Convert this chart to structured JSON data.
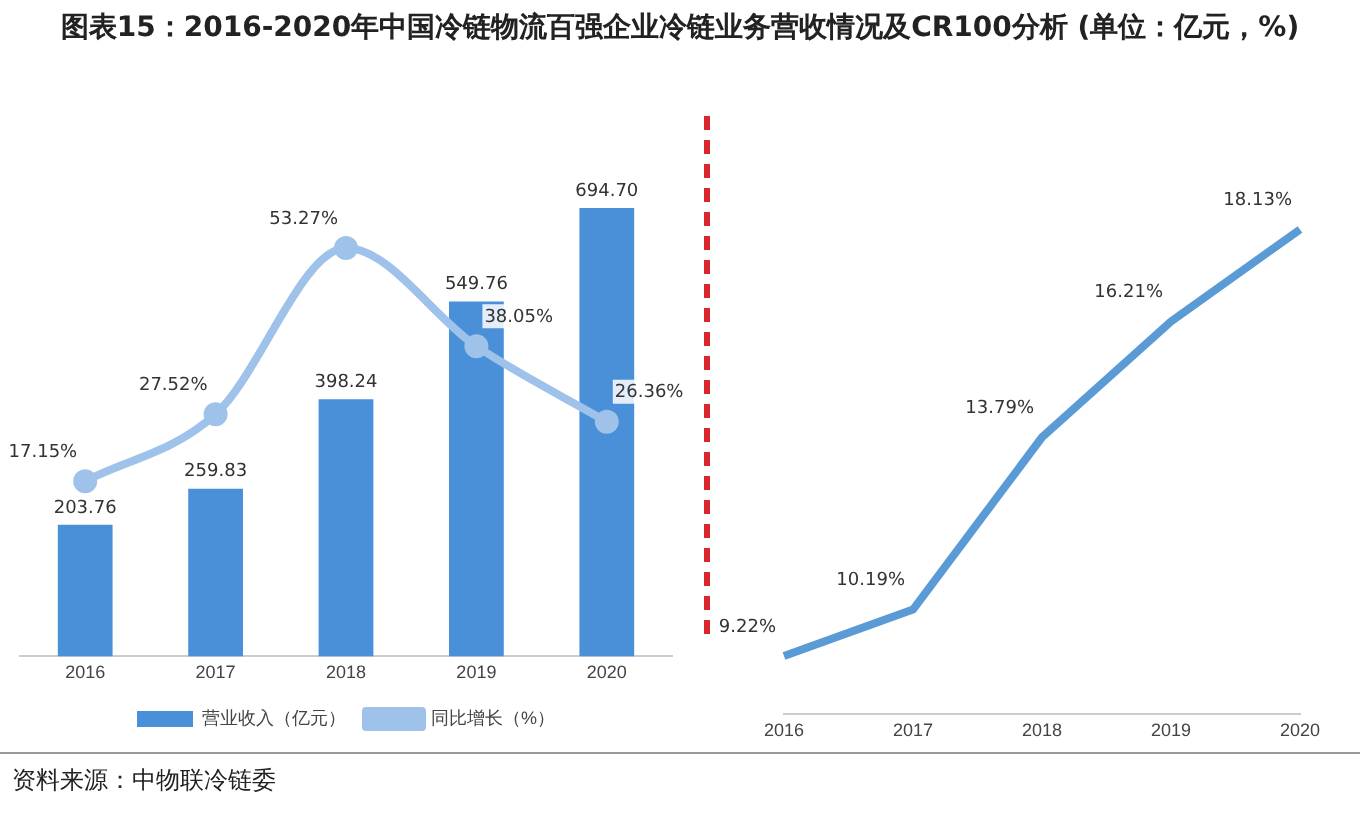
{
  "chart_data": [
    {
      "type": "bar",
      "title": "图表15：2016-2020年中国冷链物流百强企业冷链业务营收情况及CR100分析 (单位：亿元，%)",
      "categories": [
        "2016",
        "2017",
        "2018",
        "2019",
        "2020"
      ],
      "series": [
        {
          "name": "营业收入（亿元）",
          "color": "#4a90d9",
          "values": [
            203.76,
            259.83,
            398.24,
            549.76,
            694.7
          ],
          "value_labels": [
            "203.76",
            "259.83",
            "398.24",
            "549.76",
            "694.70"
          ]
        },
        {
          "name": "同比增长（%）",
          "type": "line",
          "axis": "y2",
          "color": "#9ec2ea",
          "values": [
            17.15,
            27.52,
            53.27,
            38.05,
            26.36
          ],
          "value_labels": [
            "17.15%",
            "27.52%",
            "53.27%",
            "38.05%",
            "26.36%"
          ]
        }
      ],
      "data_labels": true,
      "legend": "bottom",
      "grid": false,
      "tick_labels": "x",
      "marker": "circle",
      "annotations": [
        "资料来源：中物联冷链委"
      ]
    },
    {
      "type": "line",
      "categories": [
        "2016",
        "2017",
        "2018",
        "2019",
        "2020"
      ],
      "series": [
        {
          "color": "#5b9bd5",
          "values": [
            9.22,
            10.19,
            13.79,
            16.21,
            18.13
          ],
          "value_labels": [
            "9.22%",
            "10.19%",
            "13.79%",
            "16.21%",
            "18.13%"
          ]
        }
      ],
      "data_labels": true,
      "legend": false,
      "grid": false,
      "tick_labels": "x",
      "marker": "none"
    }
  ]
}
